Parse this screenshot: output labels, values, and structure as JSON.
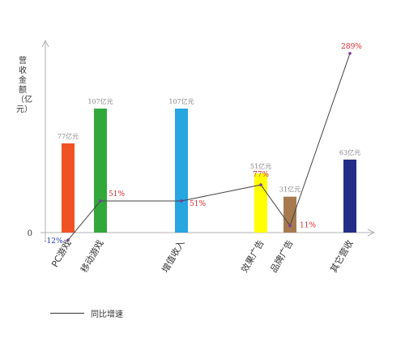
{
  "chart_data": {
    "type": "bar",
    "ylabel": "营收金额（亿元）",
    "ytick_zero": "0",
    "categories": [
      "PC游戏",
      "移动游戏",
      "增值收入",
      "效果广告",
      "品牌广告",
      "其它营收"
    ],
    "series": [
      {
        "values": [
          77,
          107,
          107,
          51,
          31,
          63
        ],
        "labels": [
          "77亿元",
          "107亿元",
          "107亿元",
          "51亿元",
          "31亿元",
          "63亿元"
        ],
        "colors": [
          "#f05323",
          "#33a83a",
          "#27a6e0",
          "#ffff00",
          "#a67a4e",
          "#232d88"
        ]
      },
      {
        "name": "同比增速",
        "type": "line",
        "values": [
          -12,
          51,
          51,
          77,
          11,
          289
        ],
        "labels": [
          "-12%",
          "51%",
          "51%",
          "77%",
          "11%",
          "289%"
        ],
        "color": "#444444",
        "marker_color": "#7a3aa0"
      }
    ],
    "legend": {
      "label": "同比增速",
      "position": "bottom-left"
    }
  },
  "colors": {
    "axis": "#b0b0b0",
    "bar_label": "#888888",
    "rate_label": "#d9262d",
    "neg_label": "#2a3ea8"
  }
}
